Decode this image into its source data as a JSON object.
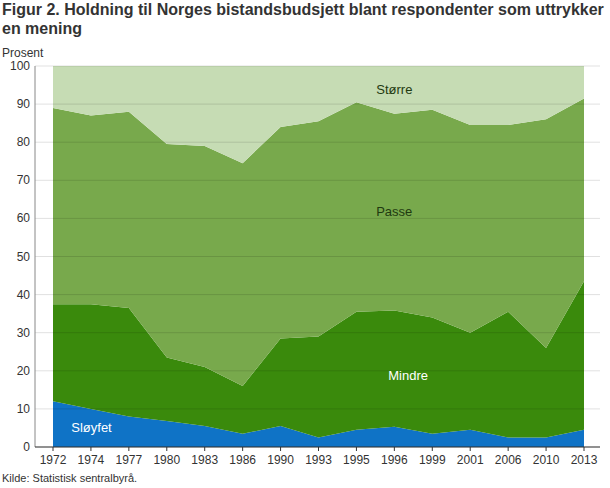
{
  "chart_data": {
    "type": "area",
    "stacked": true,
    "title": "Figur 2. Holdning til Norges bistandsbudsjett blant respondenter som uttrykker en mening",
    "y_label": "Prosent",
    "source": "Kilde: Statistisk sentralbyrå.",
    "categories": [
      "1972",
      "1974",
      "1977",
      "1980",
      "1983",
      "1986",
      "1990",
      "1993",
      "1995",
      "1996",
      "1999",
      "2001",
      "2006",
      "2010",
      "2013"
    ],
    "series": [
      {
        "name": "Sløyfet",
        "color": "#0f73c6",
        "values": [
          12,
          10,
          8,
          6.8,
          5.5,
          3.5,
          5.5,
          2.5,
          4.5,
          5.3,
          3.5,
          4.5,
          2.5,
          2.5,
          4.5
        ]
      },
      {
        "name": "Mindre",
        "color": "#3a8a0c",
        "values": [
          25.5,
          27.5,
          28.5,
          16.7,
          15.5,
          12.5,
          23,
          26.5,
          31,
          30.5,
          30.5,
          25.5,
          33,
          23.5,
          39
        ]
      },
      {
        "name": "Passe",
        "color": "#78a94c",
        "values": [
          51.5,
          49.5,
          51.5,
          56,
          58,
          58.5,
          55.5,
          56.5,
          55,
          51.7,
          54.5,
          54.5,
          49,
          60,
          48
        ]
      },
      {
        "name": "Større",
        "color": "#c6dcb4",
        "values": [
          11,
          13,
          12,
          20.5,
          21,
          25.5,
          16,
          14.5,
          9.5,
          12.5,
          11.5,
          15.5,
          15.5,
          14,
          8.5
        ]
      }
    ],
    "ylim": [
      0,
      100
    ],
    "yticks": [
      0,
      10,
      20,
      30,
      40,
      50,
      60,
      70,
      80,
      90,
      100
    ],
    "grid": true
  }
}
